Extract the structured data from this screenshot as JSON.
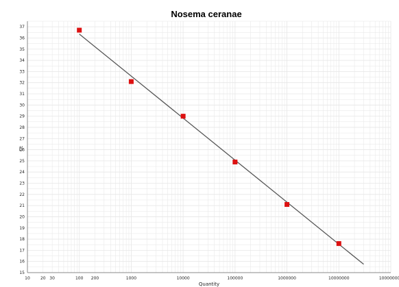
{
  "chart_data": {
    "type": "scatter",
    "title": "Nosema ceranae",
    "xlabel": "Quantity",
    "ylabel": "Ct",
    "x_scale": "log",
    "xlim": [
      10,
      100000000
    ],
    "ylim": [
      15,
      37.5
    ],
    "grid": true,
    "x_tick_labels": [
      {
        "value": 10,
        "label": "10"
      },
      {
        "value": 20,
        "label": "20"
      },
      {
        "value": 30,
        "label": "30"
      },
      {
        "value": 100,
        "label": "100"
      },
      {
        "value": 200,
        "label": "200"
      },
      {
        "value": 1000,
        "label": "1000"
      },
      {
        "value": 10000,
        "label": "10000"
      },
      {
        "value": 100000,
        "label": "100000"
      },
      {
        "value": 1000000,
        "label": "1000000"
      },
      {
        "value": 10000000,
        "label": "10000000"
      },
      {
        "value": 100000000,
        "label": "100000000"
      }
    ],
    "y_ticks": [
      15,
      16,
      17,
      18,
      19,
      20,
      21,
      22,
      23,
      24,
      25,
      26,
      27,
      28,
      29,
      30,
      31,
      32,
      33,
      34,
      35,
      36,
      37
    ],
    "points": [
      {
        "x": 100,
        "y": 36.7
      },
      {
        "x": 1000,
        "y": 32.1
      },
      {
        "x": 10000,
        "y": 29.0
      },
      {
        "x": 100000,
        "y": 24.9
      },
      {
        "x": 1000000,
        "y": 21.1
      },
      {
        "x": 10000000,
        "y": 17.6
      }
    ],
    "fit_line": [
      {
        "x": 100,
        "y": 36.35
      },
      {
        "x": 30000000,
        "y": 15.75
      }
    ],
    "colors": {
      "points": "#dd1111",
      "line": "#555555",
      "grid": "#e6e6e6",
      "axis": "#888888"
    }
  }
}
